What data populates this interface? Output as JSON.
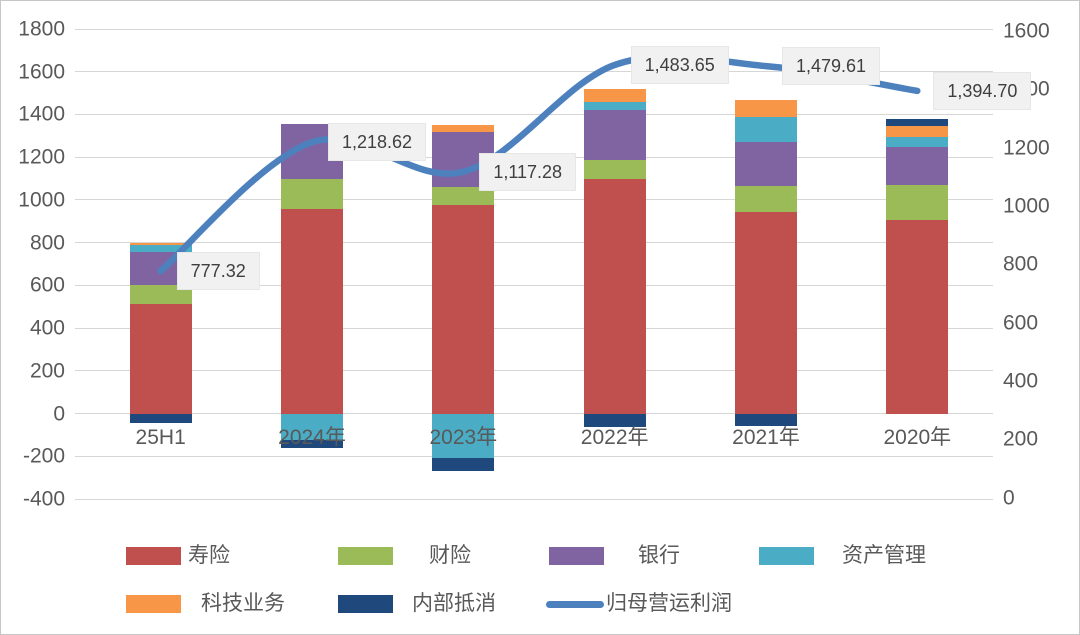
{
  "chart_data": {
    "type": "bar",
    "subtype": "stacked-bar-with-line",
    "title": "",
    "categories": [
      "25H1",
      "2024年",
      "2023年",
      "2022年",
      "2021年",
      "2020年"
    ],
    "bar_series": [
      {
        "key": "life",
        "name": "寿险",
        "color": "#C0504D",
        "values": [
          513,
          958,
          977,
          1098,
          945,
          907
        ]
      },
      {
        "key": "property",
        "name": "财险",
        "color": "#9BBB59",
        "values": [
          90,
          140,
          83,
          88,
          121,
          163
        ]
      },
      {
        "key": "bank",
        "name": "银行",
        "color": "#8064A2",
        "values": [
          152,
          256,
          260,
          237,
          205,
          177
        ]
      },
      {
        "key": "asset-mgmt",
        "name": "资产管理",
        "color": "#4BACC6",
        "values": [
          34,
          -126,
          -210,
          33,
          116,
          46
        ]
      },
      {
        "key": "tech",
        "name": "科技业务",
        "color": "#F79646",
        "values": [
          11,
          0,
          31,
          62,
          79,
          51
        ]
      },
      {
        "key": "internal-offset",
        "name": "内部抵消",
        "color": "#1F497D",
        "values": [
          -46,
          -33,
          -60,
          -65,
          -60,
          33
        ]
      }
    ],
    "line_series": {
      "key": "op-profit",
      "name": "归母营运利润",
      "color": "#4D81BE",
      "axis": "right",
      "values": [
        777.32,
        1218.62,
        1117.28,
        1483.65,
        1479.61,
        1394.7
      ],
      "labels": [
        "777.32",
        "1,218.62",
        "1,117.28",
        "1,483.65",
        "1,479.61",
        "1,394.70"
      ]
    },
    "left_axis": {
      "min": -400,
      "max": 1800,
      "step": 200,
      "ticks": [
        "1800",
        "1600",
        "1400",
        "1200",
        "1000",
        "800",
        "600",
        "400",
        "200",
        "0",
        "-200",
        "-400"
      ]
    },
    "right_axis": {
      "min": 0,
      "max": 1600,
      "step": 200,
      "ticks": [
        "1600",
        "1400",
        "1200",
        "1000",
        "800",
        "600",
        "400",
        "200",
        "0"
      ]
    },
    "grid": true,
    "legend_position": "bottom",
    "legend": [
      {
        "label": "寿险",
        "marker": "box",
        "color": "#C0504D"
      },
      {
        "label": "财险",
        "marker": "box",
        "color": "#9BBB59"
      },
      {
        "label": "银行",
        "marker": "box",
        "color": "#8064A2"
      },
      {
        "label": "资产管理",
        "marker": "box",
        "color": "#4BACC6"
      },
      {
        "label": "科技业务",
        "marker": "box",
        "color": "#F79646"
      },
      {
        "label": "内部抵消",
        "marker": "box",
        "color": "#1F497D"
      },
      {
        "label": "归母营运利润",
        "marker": "line",
        "color": "#4D81BE"
      }
    ],
    "colors": {
      "gridline": "#d6d6d6",
      "axis_text": "#595959",
      "data_label_bg": "#f1f1f1",
      "data_label_text": "#3f3f3f"
    }
  }
}
